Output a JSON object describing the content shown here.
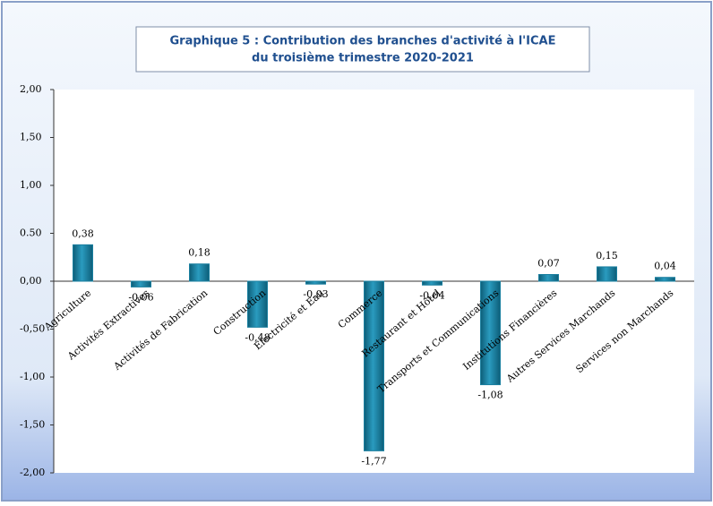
{
  "chart_data": {
    "type": "bar",
    "title": [
      "Graphique 5 : Contribution des branches d'activité à l'ICAE",
      "du troisième trimestre 2020-2021"
    ],
    "categories": [
      "Agriculture",
      "Activités Extractives",
      "Activités de Fabrication",
      "Construction",
      "Electricité et Eau",
      "Commerce",
      "Restaurant et Hôtel",
      "Transports et Communications",
      "Institutions Financières",
      "Autres Services Marchands",
      "Services non Marchands"
    ],
    "values": [
      0.38,
      -0.06,
      0.18,
      -0.48,
      -0.03,
      -1.77,
      -0.04,
      -1.08,
      0.07,
      0.15,
      0.04
    ],
    "value_labels": [
      "0,38",
      "-0,06",
      "0,18",
      "-0,48",
      "-0,03",
      "-1,77",
      "-0,04",
      "-1,08",
      "0,07",
      "0,15",
      "0,04"
    ],
    "color": "#1a7f9f",
    "ylim": [
      -2,
      2
    ],
    "yticks": [
      {
        "value": 2,
        "label": "2,00"
      },
      {
        "value": 1.5,
        "label": "1,50"
      },
      {
        "value": 1,
        "label": "1,00"
      },
      {
        "value": 0.5,
        "label": "0.50"
      },
      {
        "value": 0,
        "label": "0,00"
      },
      {
        "value": -0.5,
        "label": "-0,50"
      },
      {
        "value": -1,
        "label": "-1,00"
      },
      {
        "value": -1.5,
        "label": "-1,50"
      },
      {
        "value": -2,
        "label": "-2,00"
      }
    ]
  }
}
